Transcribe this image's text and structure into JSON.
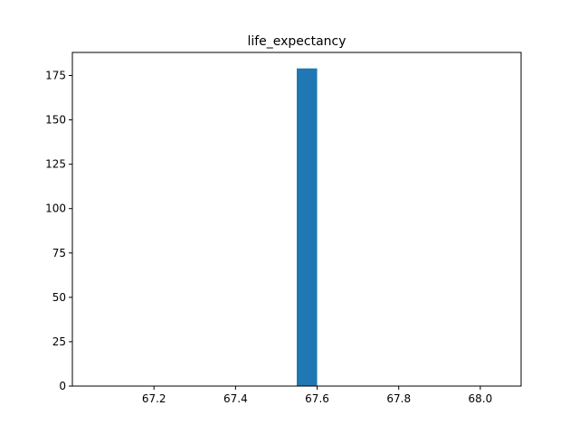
{
  "chart_data": {
    "type": "bar",
    "title": "life_expectancy",
    "xlabel": "",
    "ylabel": "",
    "xlim": [
      67.0,
      68.1
    ],
    "ylim": [
      0,
      188
    ],
    "xticks": [
      67.2,
      67.4,
      67.6,
      67.8,
      68.0
    ],
    "xtick_labels": [
      "67.2",
      "67.4",
      "67.6",
      "67.8",
      "68.0"
    ],
    "yticks": [
      0,
      25,
      50,
      75,
      100,
      125,
      150,
      175
    ],
    "ytick_labels": [
      "0",
      "25",
      "50",
      "75",
      "100",
      "125",
      "150",
      "175"
    ],
    "bins": [
      {
        "x0": 67.55,
        "x1": 67.6,
        "value": 179
      }
    ],
    "bar_color": "#1f77b4",
    "grid": false,
    "legend": "none"
  }
}
